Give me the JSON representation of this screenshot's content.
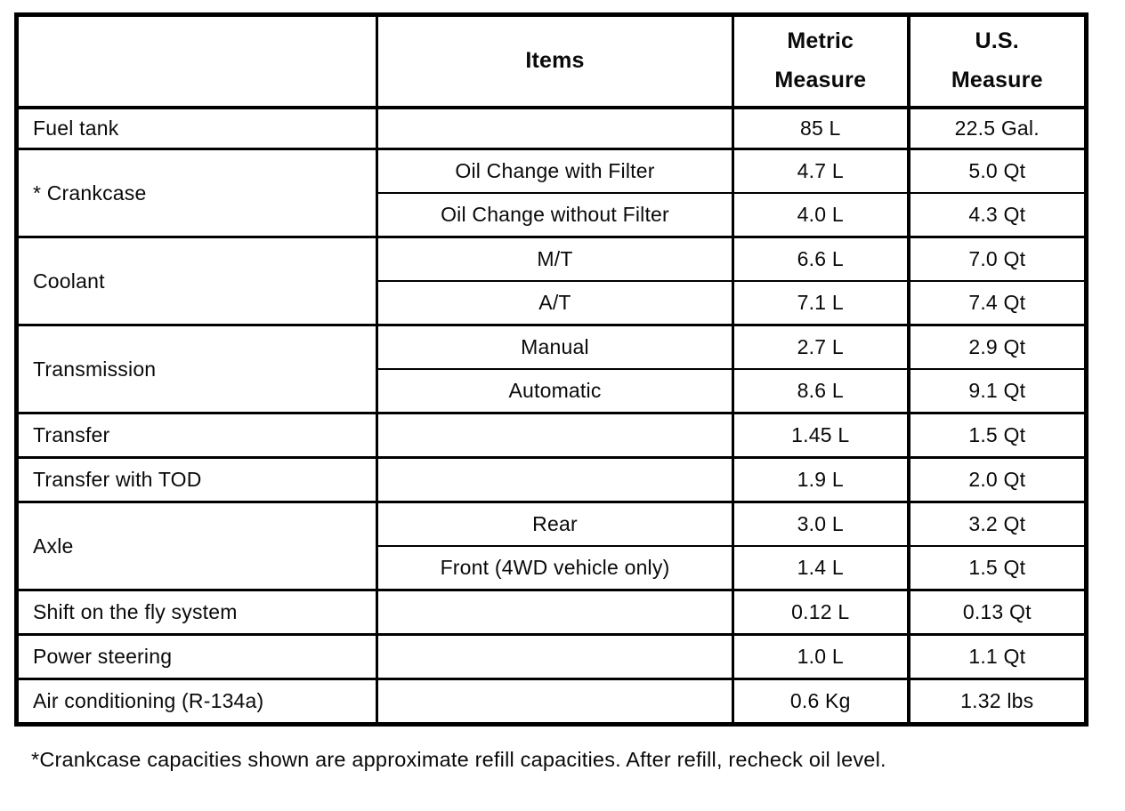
{
  "colors": {
    "ink": "#000000",
    "paper": "#ffffff"
  },
  "table": {
    "headers": {
      "blank": "",
      "items": "Items",
      "metric": [
        "Metric",
        "Measure"
      ],
      "us": [
        "U.S.",
        "Measure"
      ]
    },
    "groups": [
      {
        "category": "Fuel tank",
        "rows": [
          {
            "item": "",
            "metric": "85 L",
            "us": "22.5 Gal."
          }
        ]
      },
      {
        "category": "* Crankcase",
        "rows": [
          {
            "item": "Oil Change with Filter",
            "metric": "4.7 L",
            "us": "5.0 Qt"
          },
          {
            "item": "Oil Change without Filter",
            "metric": "4.0 L",
            "us": "4.3 Qt"
          }
        ]
      },
      {
        "category": "Coolant",
        "rows": [
          {
            "item": "M/T",
            "metric": "6.6 L",
            "us": "7.0 Qt"
          },
          {
            "item": "A/T",
            "metric": "7.1 L",
            "us": "7.4 Qt"
          }
        ]
      },
      {
        "category": "Transmission",
        "rows": [
          {
            "item": "Manual",
            "metric": "2.7 L",
            "us": "2.9 Qt"
          },
          {
            "item": "Automatic",
            "metric": "8.6 L",
            "us": "9.1 Qt"
          }
        ]
      },
      {
        "category": "Transfer",
        "rows": [
          {
            "item": "",
            "metric": "1.45 L",
            "us": "1.5 Qt"
          }
        ]
      },
      {
        "category": "Transfer with TOD",
        "rows": [
          {
            "item": "",
            "metric": "1.9 L",
            "us": "2.0 Qt"
          }
        ]
      },
      {
        "category": "Axle",
        "rows": [
          {
            "item": "Rear",
            "metric": "3.0 L",
            "us": "3.2 Qt"
          },
          {
            "item": "Front (4WD vehicle only)",
            "metric": "1.4 L",
            "us": "1.5 Qt"
          }
        ]
      },
      {
        "category": "Shift on the fly system",
        "rows": [
          {
            "item": "",
            "metric": "0.12 L",
            "us": "0.13 Qt"
          }
        ]
      },
      {
        "category": "Power steering",
        "rows": [
          {
            "item": "",
            "metric": "1.0 L",
            "us": "1.1 Qt"
          }
        ]
      },
      {
        "category": "Air conditioning (R-134a)",
        "rows": [
          {
            "item": "",
            "metric": "0.6 Kg",
            "us": "1.32 lbs"
          }
        ]
      }
    ]
  },
  "footnote": "*Crankcase capacities shown are approximate refill capacities. After refill, recheck oil level."
}
